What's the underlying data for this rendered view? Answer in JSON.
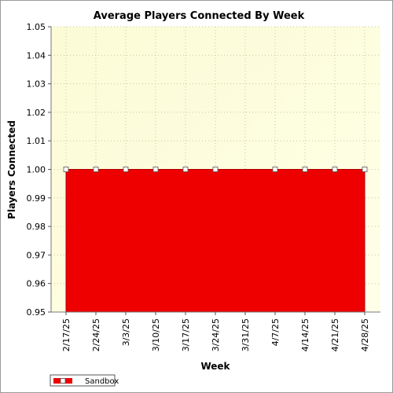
{
  "chart_data": {
    "type": "area",
    "title": "Average Players Connected By Week",
    "xlabel": "Week",
    "ylabel": "Players Connected",
    "ylim": [
      0.95,
      1.05
    ],
    "yticks": [
      0.95,
      0.96,
      0.97,
      0.98,
      0.99,
      1.0,
      1.01,
      1.02,
      1.03,
      1.04,
      1.05
    ],
    "ytick_labels": [
      "0.95",
      "0.96",
      "0.97",
      "0.98",
      "0.99",
      "1.00",
      "1.01",
      "1.02",
      "1.03",
      "1.04",
      "1.05"
    ],
    "categories": [
      "2/17/25",
      "2/24/25",
      "3/3/25",
      "3/10/25",
      "3/17/25",
      "3/24/25",
      "3/31/25",
      "4/7/25",
      "4/14/25",
      "4/21/25",
      "4/28/25"
    ],
    "series": [
      {
        "name": "Sandbox",
        "values": [
          1.0,
          1.0,
          1.0,
          1.0,
          1.0,
          1.0,
          null,
          1.0,
          1.0,
          1.0,
          1.0
        ],
        "color": "#ee0000"
      }
    ],
    "grid": true,
    "legend": "bottom-left",
    "colors": {
      "plot_bg_top": "#fffff0",
      "plot_bg_bottom": "#fbfbd6",
      "fill": "#ee0000",
      "grid": "#c8c8a0"
    }
  }
}
